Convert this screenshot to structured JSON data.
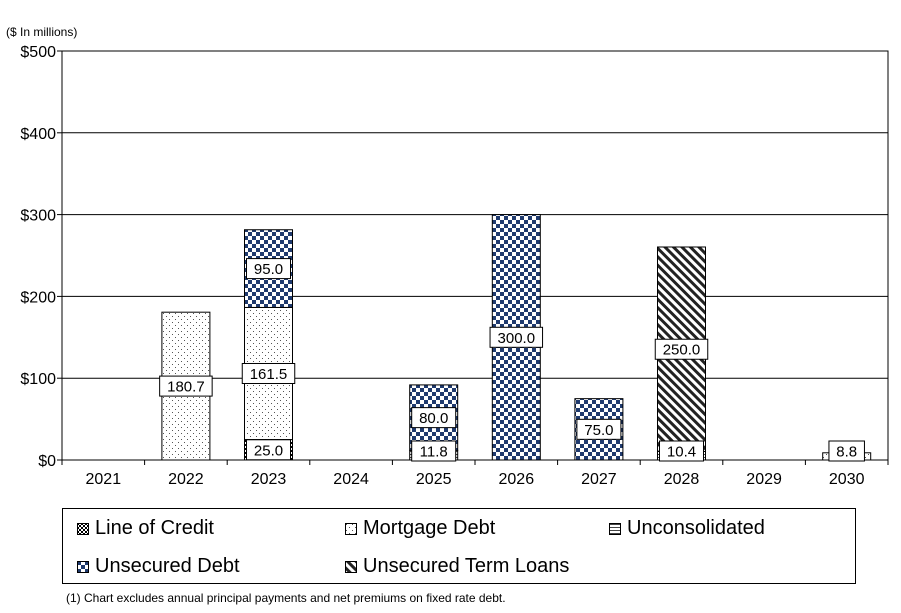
{
  "unit_label": "($ In millions)",
  "footnote": "(1) Chart excludes annual principal payments and net premiums on fixed rate debt.",
  "chart_data": {
    "type": "bar",
    "stacked": true,
    "categories": [
      "2021",
      "2022",
      "2023",
      "2024",
      "2025",
      "2026",
      "2027",
      "2028",
      "2029",
      "2030"
    ],
    "ylim": [
      0,
      500
    ],
    "yticks": [
      0,
      100,
      200,
      300,
      400,
      500
    ],
    "ytick_labels": [
      "$0",
      "$100",
      "$200",
      "$300",
      "$400",
      "$500"
    ],
    "grid": "horizontal",
    "legend_position": "bottom",
    "series": [
      {
        "name": "Line of Credit",
        "pattern": "checker-fine",
        "values": [
          0,
          0,
          25.0,
          0,
          0,
          0,
          0,
          0,
          0,
          0
        ],
        "labels": [
          "",
          "",
          "25.0",
          "",
          "",
          "",
          "",
          "",
          "",
          ""
        ]
      },
      {
        "name": "Mortgage Debt",
        "pattern": "dots",
        "values": [
          0,
          180.7,
          161.5,
          0,
          0,
          0,
          0,
          0,
          0,
          8.8
        ],
        "labels": [
          "",
          "180.7",
          "161.5",
          "",
          "",
          "",
          "",
          "",
          "",
          "8.8"
        ]
      },
      {
        "name": "Unconsolidated",
        "pattern": "horizontal-lines",
        "values": [
          0,
          0,
          0,
          0,
          11.8,
          0,
          0,
          10.4,
          0,
          0
        ],
        "labels": [
          "",
          "",
          "",
          "",
          "11.8",
          "",
          "",
          "10.4",
          "",
          ""
        ]
      },
      {
        "name": "Unsecured Debt",
        "pattern": "checker-blue",
        "values": [
          0,
          0,
          95.0,
          0,
          80.0,
          300.0,
          75.0,
          0,
          0,
          0
        ],
        "labels": [
          "",
          "",
          "95.0",
          "",
          "80.0",
          "300.0",
          "75.0",
          "",
          "",
          ""
        ]
      },
      {
        "name": "Unsecured Term Loans",
        "pattern": "diagonal",
        "values": [
          0,
          0,
          0,
          0,
          0,
          0,
          0,
          250.0,
          0,
          0
        ],
        "labels": [
          "",
          "",
          "",
          "",
          "",
          "",
          "",
          "250.0",
          "",
          ""
        ]
      }
    ],
    "colors": {
      "checker": "#1f3a6e",
      "line_of_credit": "#000000",
      "border": "#000000"
    }
  }
}
